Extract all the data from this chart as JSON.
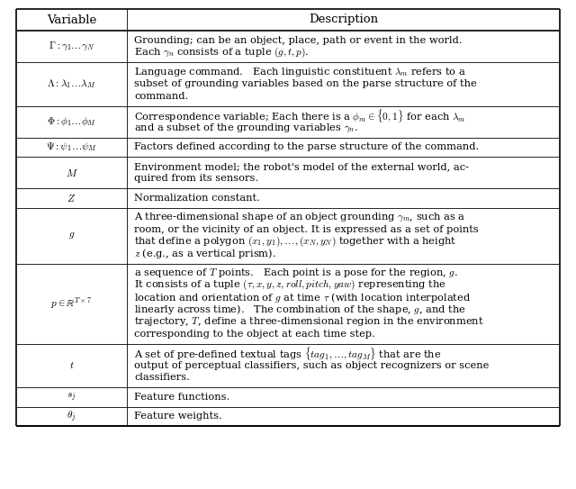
{
  "title_variable": "Variable",
  "title_description": "Description",
  "bg_color": "#ffffff",
  "line_color": "#000000",
  "text_color": "#000000",
  "header_fontsize": 9.5,
  "body_fontsize": 8.2,
  "fig_width": 6.4,
  "fig_height": 5.43,
  "dpi": 100,
  "rows": [
    {
      "variable": "$\\Gamma : \\gamma_1 \\ldots \\gamma_N$",
      "desc_lines": [
        "Grounding; can be an object, place, path or event in the world.",
        "Each $\\gamma_n$ consists of a tuple $(g, t, p)$."
      ]
    },
    {
      "variable": "$\\Lambda : \\lambda_1 \\ldots \\lambda_M$",
      "desc_lines": [
        "Language command.   Each linguistic constituent $\\lambda_m$ refers to a",
        "subset of grounding variables based on the parse structure of the",
        "command."
      ]
    },
    {
      "variable": "$\\Phi : \\phi_1 \\ldots \\phi_M$",
      "desc_lines": [
        "Correspondence variable; Each there is a $\\phi_m \\in \\{0, 1\\}$ for each $\\lambda_m$",
        "and a subset of the grounding variables $\\gamma_n$."
      ]
    },
    {
      "variable": "$\\Psi : \\psi_1 \\ldots \\psi_M$",
      "desc_lines": [
        "Factors defined according to the parse structure of the command."
      ]
    },
    {
      "variable": "$M$",
      "desc_lines": [
        "Environment model; the robot's model of the external world, ac-",
        "quired from its sensors."
      ]
    },
    {
      "variable": "$Z$",
      "desc_lines": [
        "Normalization constant."
      ]
    },
    {
      "variable": "$g$",
      "desc_lines": [
        "A three-dimensional shape of an object grounding $\\gamma_m$, such as a",
        "room, or the vicinity of an object. It is expressed as a set of points",
        "that define a polygon $(x_1, y_1), \\ldots, (x_N, y_N)$ together with a height",
        "$z$ (e.g., as a vertical prism)."
      ]
    },
    {
      "variable": "$p \\in \\mathbb{R}^{T \\times 7}$",
      "desc_lines": [
        "a sequence of $T$ points.   Each point is a pose for the region, $g$.",
        "It consists of a tuple $(\\tau, x, y, z, roll, pitch, yaw)$ representing the",
        "location and orientation of $g$ at time $\\tau$ (with location interpolated",
        "linearly across time).   The combination of the shape, $g$, and the",
        "trajectory, $T$, define a three-dimensional region in the environment",
        "corresponding to the object at each time step."
      ]
    },
    {
      "variable": "$t$",
      "desc_lines": [
        "A set of pre-defined textual tags $\\{tag_1, \\ldots, tag_M\\}$ that are the",
        "output of perceptual classifiers, such as object recognizers or scene",
        "classifiers."
      ]
    },
    {
      "variable": "$s_j$",
      "desc_lines": [
        "Feature functions."
      ]
    },
    {
      "variable": "$\\theta_j$",
      "desc_lines": [
        "Feature weights."
      ]
    }
  ]
}
